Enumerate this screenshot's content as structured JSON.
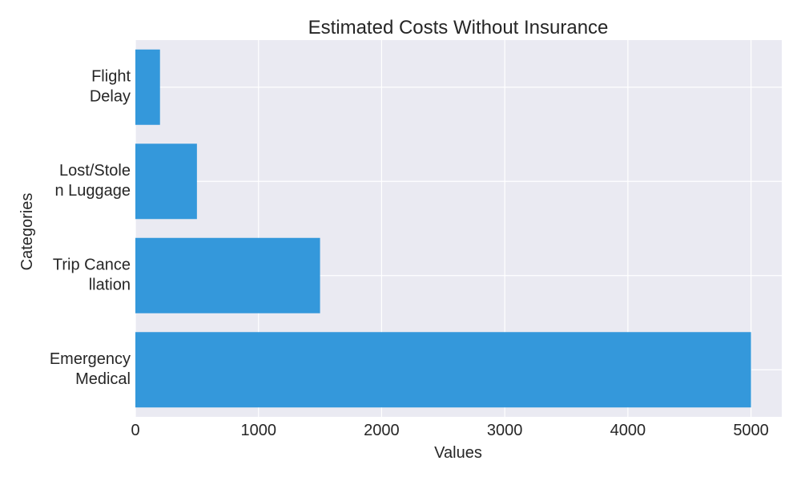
{
  "chart_data": {
    "type": "bar",
    "orientation": "horizontal",
    "title": "Estimated Costs Without Insurance",
    "xlabel": "Values",
    "ylabel": "Categories",
    "categories": [
      [
        "Flight",
        "Delay"
      ],
      [
        "Lost/Stole",
        "n Luggage"
      ],
      [
        "Trip Cance",
        "llation"
      ],
      [
        "Emergency",
        "Medical"
      ]
    ],
    "values": [
      200,
      500,
      1500,
      5000
    ],
    "xlim": [
      0,
      5250
    ],
    "xticks": [
      "0",
      "1000",
      "2000",
      "3000",
      "4000",
      "5000"
    ],
    "grid": true,
    "bar_color": "#3498db",
    "background_color": "#eaeaf2",
    "grid_color": "#ffffff"
  }
}
